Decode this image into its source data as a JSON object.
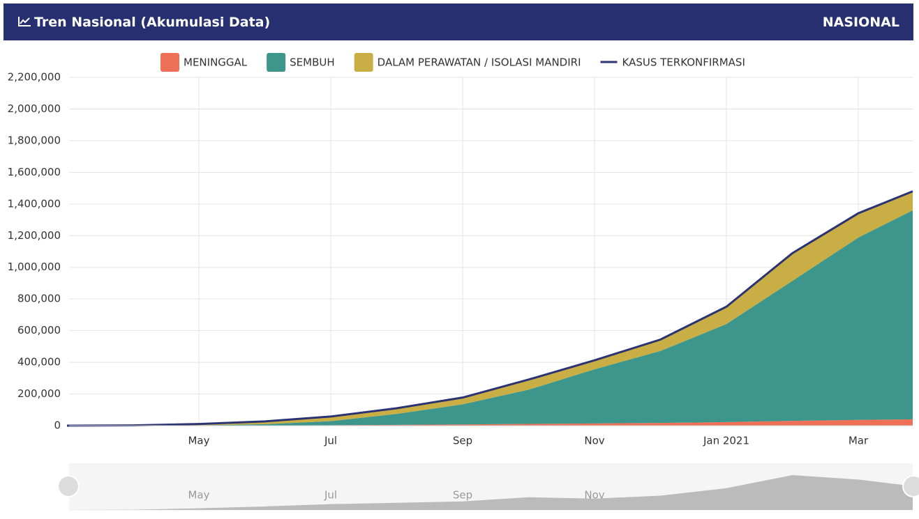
{
  "header": {
    "title": "Tren Nasional (Akumulasi Data)",
    "region": "NASIONAL"
  },
  "chart_data": {
    "type": "area",
    "categories": [
      null,
      null,
      "May",
      null,
      "Jul",
      null,
      "Sep",
      null,
      "Nov",
      null,
      "Jan 2021",
      null,
      "Mar",
      null
    ],
    "series": [
      {
        "name": "MENINGGAL",
        "color": "#ee7056",
        "values": [
          0,
          157,
          800,
          1613,
          2876,
          5193,
          7616,
          10856,
          13943,
          17081,
          22329,
          30277,
          36325,
          40000
        ]
      },
      {
        "name": "SEMBUH",
        "color": "#3d968c",
        "values": [
          0,
          81,
          1591,
          7637,
          25595,
          68975,
          127083,
          216237,
          341942,
          454879,
          619357,
          883682,
          1151915,
          1320000
        ]
      },
      {
        "name": "DALAM PERAWATAN / ISOLASI MANDIRI",
        "color": "#c9ae45",
        "values": [
          0,
          1439,
          8160,
          17690,
          29299,
          35768,
          42872,
          64089,
          56899,
          72015,
          109584,
          175349,
          153074,
          120000
        ]
      },
      {
        "name": "KASUS TERKONFIRMASI",
        "color": "#2b3373",
        "type": "line",
        "values": [
          0,
          1677,
          10551,
          26940,
          57770,
          109936,
          177571,
          291182,
          412784,
          543975,
          751270,
          1089308,
          1341314,
          1480000
        ]
      }
    ],
    "stacked": true,
    "ylim": [
      0,
      2200000
    ],
    "yticks": [
      0,
      {
        "value": 200000,
        "label": "200,000"
      },
      {
        "value": 400000,
        "label": "400,000"
      },
      {
        "value": 600000,
        "label": "600,000"
      },
      {
        "value": 800000,
        "label": "800,000"
      },
      {
        "value": 1000000,
        "label": "1,000,000"
      },
      {
        "value": 1200000,
        "label": "1,200,000"
      },
      {
        "value": 1400000,
        "label": "1,400,000"
      },
      {
        "value": 1600000,
        "label": "1,600,000"
      },
      {
        "value": 1800000,
        "label": "1,800,000"
      },
      {
        "value": 2000000,
        "label": "2,000,000"
      },
      {
        "value": 2200000,
        "label": "2,200,000"
      }
    ],
    "grid": true
  }
}
